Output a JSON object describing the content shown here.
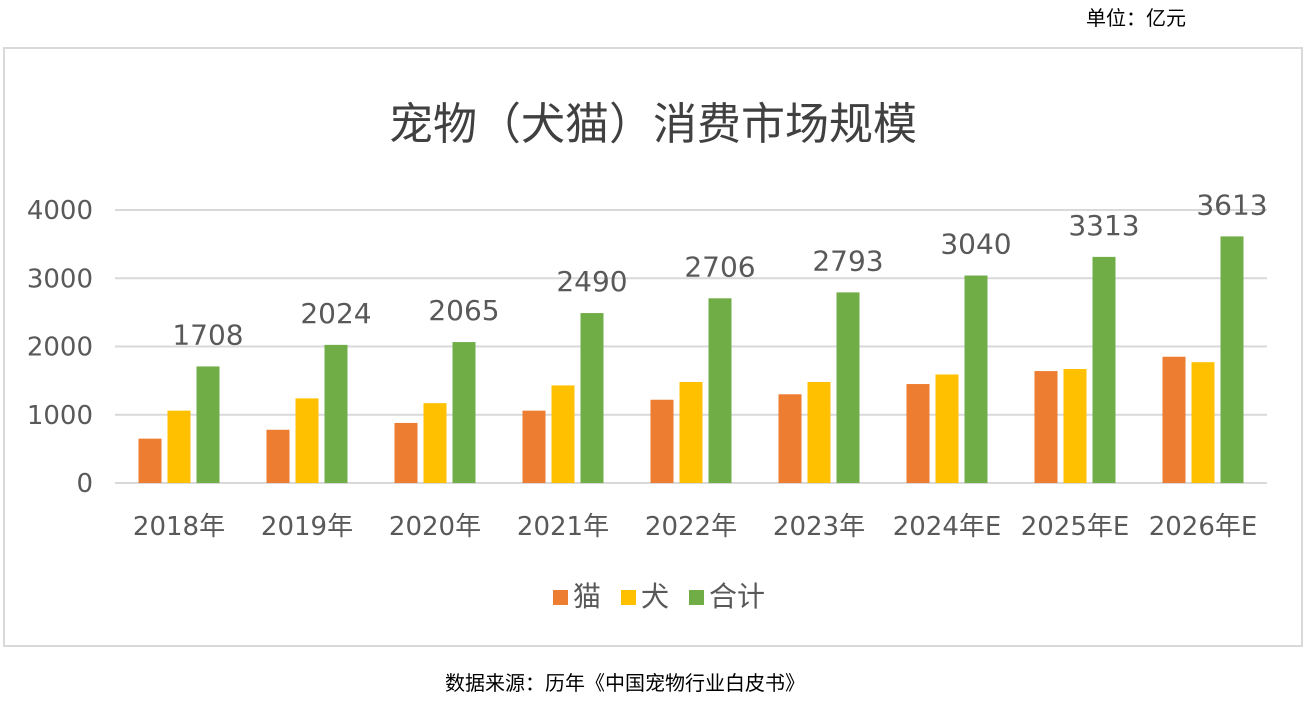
{
  "unit": "单位：亿元",
  "source": "数据来源：历年《中国宠物行业白皮书》",
  "chart_data": {
    "type": "bar",
    "title": "宠物（犬猫）消费市场规模",
    "xlabel": "",
    "ylabel": "",
    "categories": [
      "2018年",
      "2019年",
      "2020年",
      "2021年",
      "2022年",
      "2023年",
      "2024年E",
      "2025年E",
      "2026年E"
    ],
    "series": [
      {
        "name": "猫",
        "color": "#ed7d31",
        "values": [
          650,
          780,
          880,
          1060,
          1220,
          1300,
          1450,
          1640,
          1850
        ]
      },
      {
        "name": "犬",
        "color": "#ffc000",
        "values": [
          1060,
          1240,
          1170,
          1430,
          1480,
          1480,
          1590,
          1670,
          1770
        ]
      },
      {
        "name": "合计",
        "color": "#70ad47",
        "values": [
          1708,
          2024,
          2065,
          2490,
          2706,
          2793,
          3040,
          3313,
          3613
        ],
        "data_labels": true
      }
    ],
    "ylim": [
      0,
      4000
    ],
    "yticks": [
      0,
      1000,
      2000,
      3000,
      4000
    ],
    "grid": true,
    "legend": "bottom"
  }
}
